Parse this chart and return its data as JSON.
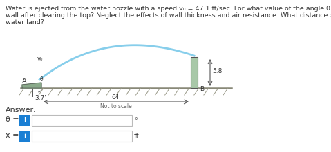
{
  "title_line1": "Water is ejected from the water nozzle with a speed v₀ = 47.1 ft/sec. For what value of the angle θ will the water land closest to the",
  "title_line2": "wall after clearing the top? Neglect the effects of wall thickness and air resistance. What distance x to the right of point B does the",
  "title_line3": "water land?",
  "title_fontsize": 6.8,
  "bg_color": "#ffffff",
  "answer_label": "Answer:",
  "theta_label": "θ =",
  "x_label": "x =",
  "unit_label": "ft",
  "degree_symbol": "°",
  "text_color": "#333333",
  "info_button_color": "#1a7fd4",
  "label_37": "3.7'",
  "label_58": "5.8'",
  "label_64": "64'",
  "label_nts": "Not to scale",
  "label_A": "A",
  "label_B": "B",
  "label_v0": "v₀",
  "arc_color": "#87ceeb",
  "wall_color": "#a8c8a8",
  "ground_color": "#c8c8b0",
  "hatch_color": "#999988",
  "dim_color": "#555555"
}
